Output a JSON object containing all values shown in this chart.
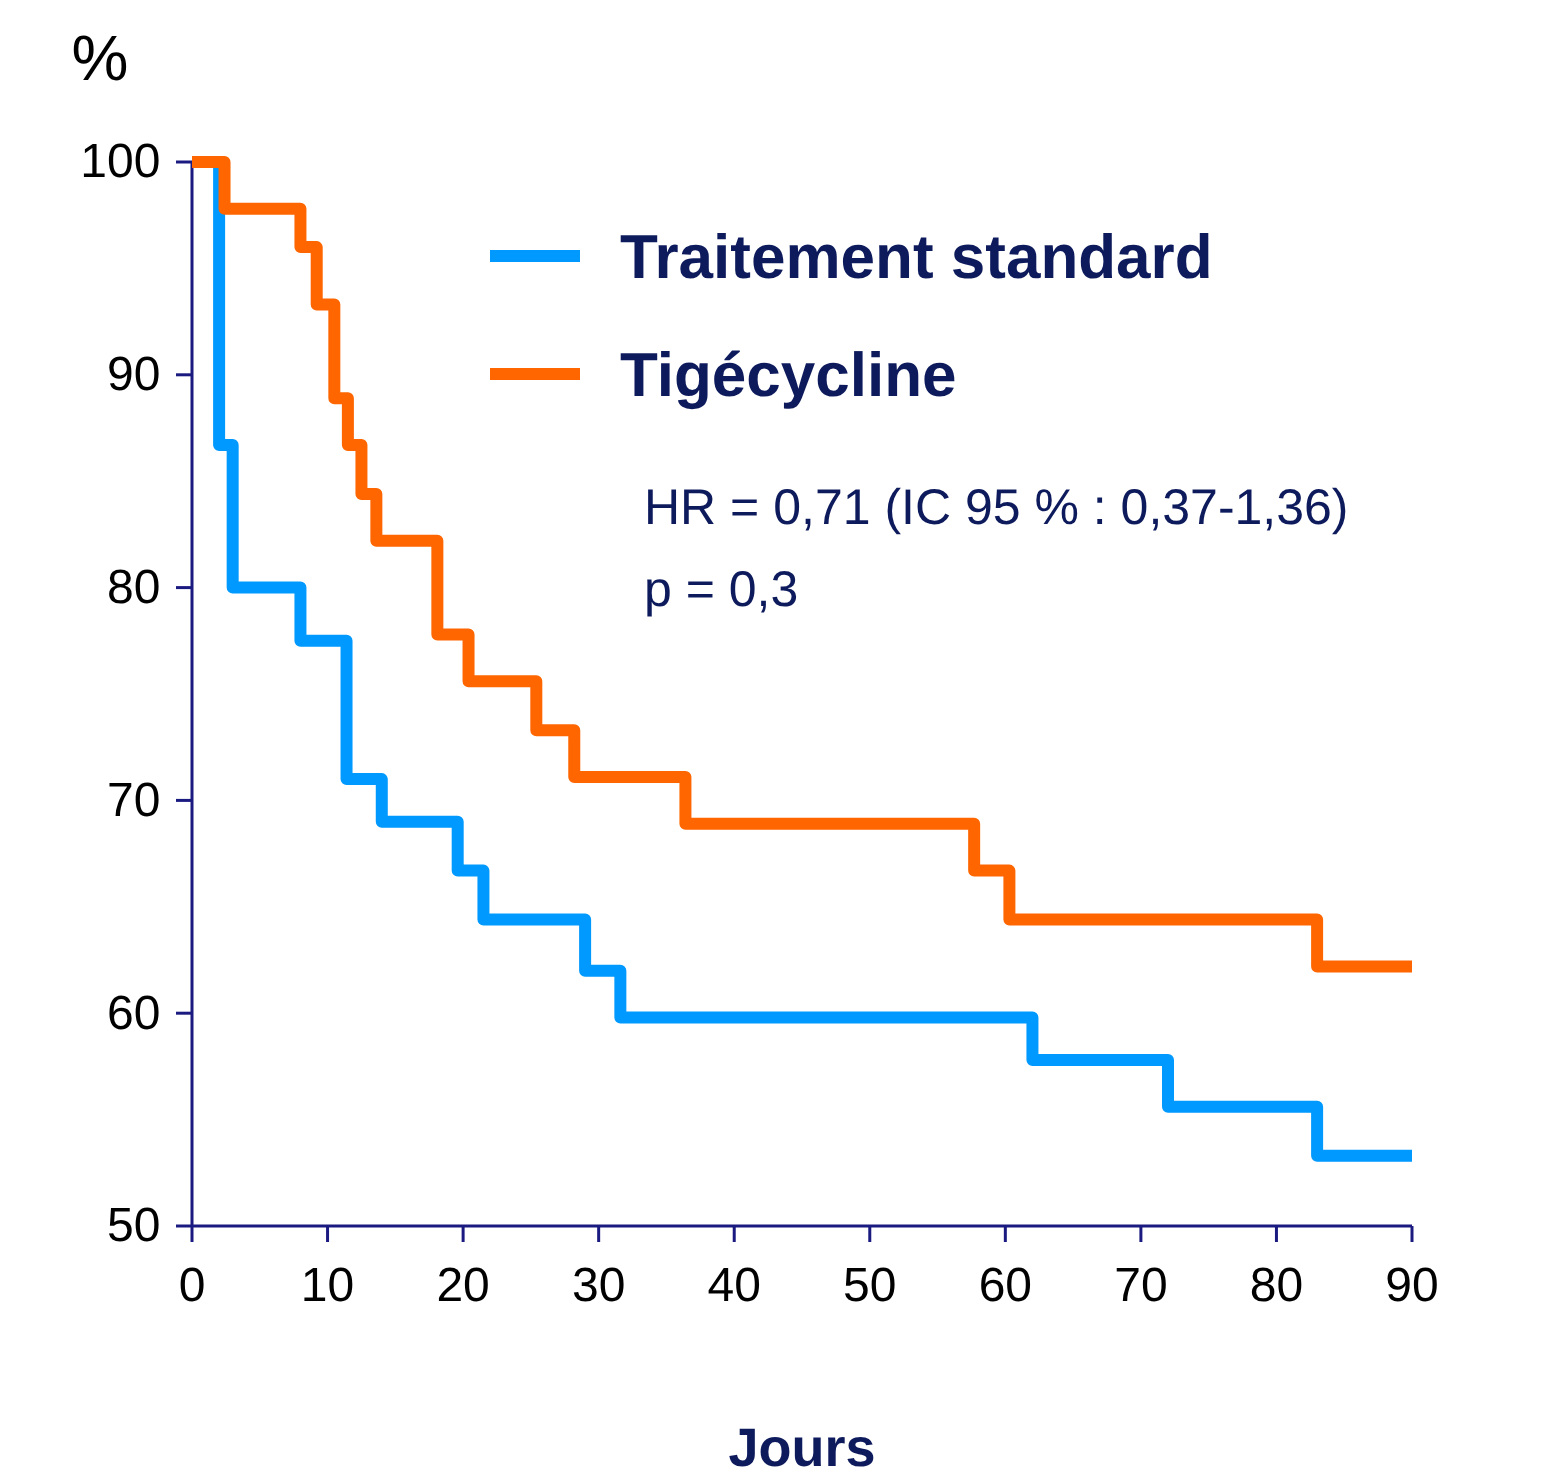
{
  "chart_data": {
    "type": "step",
    "ylabel": "%",
    "xlabel": "Jours",
    "xlim": [
      0,
      90
    ],
    "ylim": [
      50,
      100
    ],
    "xticks": [
      0,
      10,
      20,
      30,
      40,
      50,
      60,
      70,
      80,
      90
    ],
    "yticks": [
      50,
      60,
      70,
      80,
      90,
      100
    ],
    "legend": "top right",
    "grid": false,
    "line_style": "solid",
    "marker": "none",
    "series": [
      {
        "name": "Traitement standard",
        "color": "#0099ff",
        "x": [
          0,
          2,
          3,
          8,
          11.4,
          14,
          19.6,
          21.5,
          29,
          31.6,
          62,
          72,
          83,
          90
        ],
        "values": [
          100,
          86.7,
          80,
          77.5,
          71,
          69,
          66.7,
          64.4,
          62,
          59.8,
          57.8,
          55.6,
          53.3,
          53.3
        ]
      },
      {
        "name": "Tigécycline",
        "color": "#ff6600",
        "x": [
          0,
          2.4,
          8,
          9.2,
          10.5,
          11.5,
          12.5,
          13.6,
          18.1,
          20.4,
          25.4,
          28.2,
          36.4,
          57.7,
          60.3,
          83,
          90
        ],
        "values": [
          100,
          97.8,
          96,
          93.3,
          88.9,
          86.7,
          84.4,
          82.2,
          77.8,
          75.6,
          73.3,
          71.1,
          68.9,
          66.7,
          64.4,
          62.2,
          62.2
        ]
      }
    ],
    "annotations": [
      "HR = 0,71 (IC 95 % : 0,37-1,36)",
      "p = 0,3"
    ]
  }
}
